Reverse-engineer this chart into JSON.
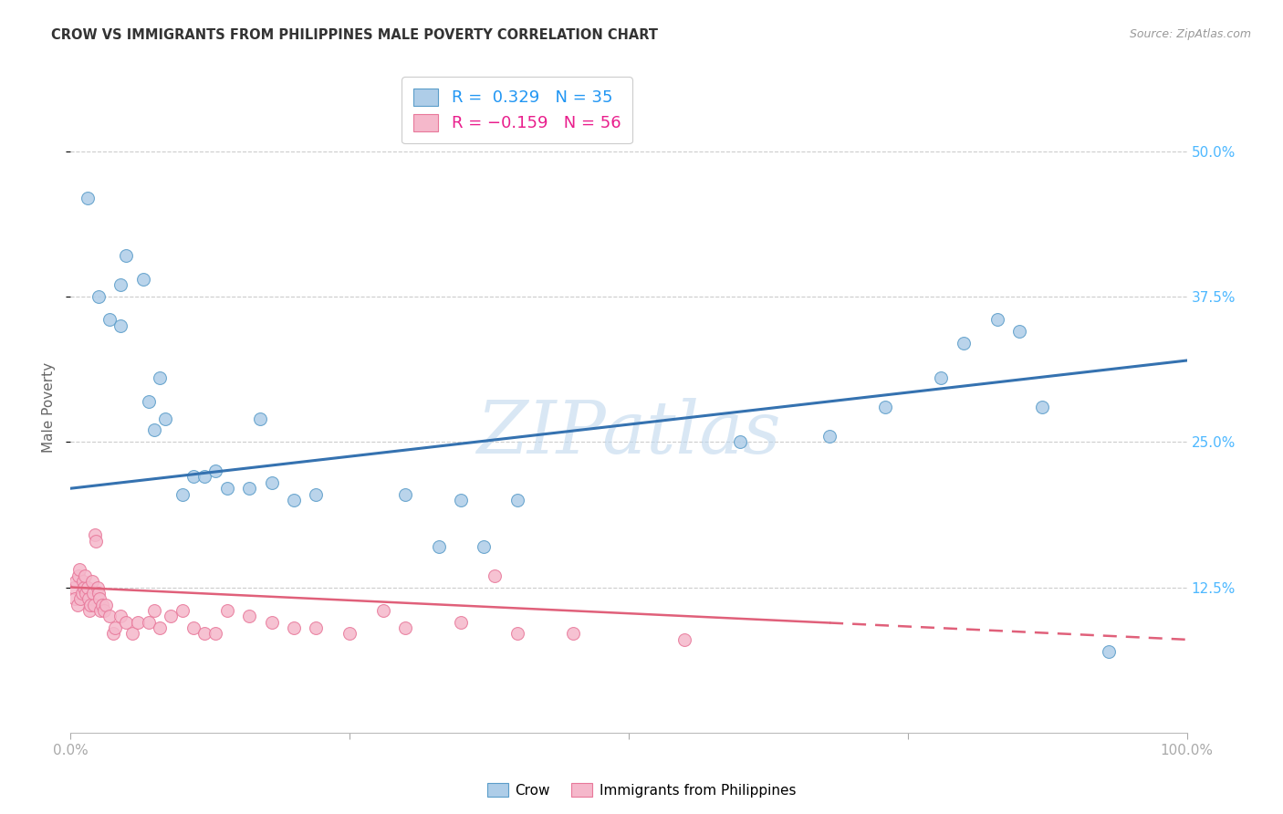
{
  "title": "CROW VS IMMIGRANTS FROM PHILIPPINES MALE POVERTY CORRELATION CHART",
  "source": "Source: ZipAtlas.com",
  "ylabel": "Male Poverty",
  "watermark": "ZIPatlas",
  "xlim": [
    0,
    100
  ],
  "ylim": [
    0,
    56
  ],
  "ytick_positions": [
    12.5,
    25.0,
    37.5,
    50.0
  ],
  "ytick_labels": [
    "12.5%",
    "25.0%",
    "37.5%",
    "50.0%"
  ],
  "crow_R": 0.329,
  "crow_N": 35,
  "phil_R": -0.159,
  "phil_N": 56,
  "crow_color": "#aecde8",
  "phil_color": "#f5b8cb",
  "crow_edge_color": "#5b9dc9",
  "phil_edge_color": "#e8789a",
  "crow_line_color": "#3572b0",
  "phil_line_color": "#e0607a",
  "background_color": "#ffffff",
  "grid_color": "#cccccc",
  "crow_x": [
    1.5,
    2.5,
    3.5,
    4.5,
    4.5,
    5.0,
    6.5,
    7.0,
    7.5,
    8.0,
    8.5,
    10.0,
    11.0,
    12.0,
    13.0,
    14.0,
    16.0,
    17.0,
    18.0,
    20.0,
    22.0,
    30.0,
    33.0,
    35.0,
    37.0,
    40.0,
    60.0,
    68.0,
    73.0,
    78.0,
    80.0,
    83.0,
    85.0,
    87.0,
    93.0
  ],
  "crow_y": [
    46.0,
    37.5,
    35.5,
    35.0,
    38.5,
    41.0,
    39.0,
    28.5,
    26.0,
    30.5,
    27.0,
    20.5,
    22.0,
    22.0,
    22.5,
    21.0,
    21.0,
    27.0,
    21.5,
    20.0,
    20.5,
    20.5,
    16.0,
    20.0,
    16.0,
    20.0,
    25.0,
    25.5,
    28.0,
    30.5,
    33.5,
    35.5,
    34.5,
    28.0,
    7.0
  ],
  "phil_x": [
    0.3,
    0.4,
    0.5,
    0.6,
    0.7,
    0.8,
    0.9,
    1.0,
    1.1,
    1.2,
    1.3,
    1.4,
    1.5,
    1.6,
    1.7,
    1.8,
    1.9,
    2.0,
    2.1,
    2.2,
    2.3,
    2.4,
    2.5,
    2.6,
    2.7,
    2.8,
    3.0,
    3.2,
    3.5,
    3.8,
    4.0,
    4.5,
    5.0,
    5.5,
    6.0,
    7.0,
    7.5,
    8.0,
    9.0,
    10.0,
    11.0,
    12.0,
    13.0,
    14.0,
    16.0,
    18.0,
    20.0,
    22.0,
    25.0,
    28.0,
    30.0,
    35.0,
    38.0,
    40.0,
    45.0,
    55.0
  ],
  "phil_y": [
    12.5,
    11.5,
    13.0,
    11.0,
    13.5,
    14.0,
    11.5,
    12.0,
    13.0,
    12.5,
    13.5,
    12.0,
    12.5,
    11.5,
    10.5,
    11.0,
    13.0,
    12.0,
    11.0,
    17.0,
    16.5,
    12.5,
    12.0,
    11.5,
    10.5,
    11.0,
    10.5,
    11.0,
    10.0,
    8.5,
    9.0,
    10.0,
    9.5,
    8.5,
    9.5,
    9.5,
    10.5,
    9.0,
    10.0,
    10.5,
    9.0,
    8.5,
    8.5,
    10.5,
    10.0,
    9.5,
    9.0,
    9.0,
    8.5,
    10.5,
    9.0,
    9.5,
    13.5,
    8.5,
    8.5,
    8.0
  ]
}
